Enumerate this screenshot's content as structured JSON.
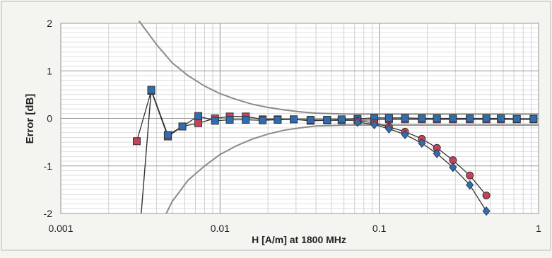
{
  "chart_data": {
    "type": "line",
    "x_scale": "log",
    "xlim": [
      0.001,
      1
    ],
    "ylim": [
      -2,
      2
    ],
    "xlabel": "H [A/m] at 1800 MHz",
    "ylabel": "Error [dB]",
    "x_ticks": [
      {
        "value": 0.001,
        "label": "0.001"
      },
      {
        "value": 0.01,
        "label": "0.01"
      },
      {
        "value": 0.1,
        "label": "0.1"
      },
      {
        "value": 1,
        "label": "1"
      }
    ],
    "y_ticks": [
      {
        "value": 2,
        "label": "2"
      },
      {
        "value": 1,
        "label": "1"
      },
      {
        "value": 0,
        "label": "0"
      },
      {
        "value": -1,
        "label": "-1"
      },
      {
        "value": -2,
        "label": "-2"
      }
    ],
    "grid": true,
    "series": [
      {
        "color": "#c8415a",
        "marker": "square",
        "points": [
          [
            0.003,
            -0.48
          ],
          [
            0.0037,
            0.58
          ],
          [
            0.0047,
            -0.38
          ],
          [
            0.0058,
            -0.17
          ],
          [
            0.0073,
            -0.1
          ],
          [
            0.0093,
            0.0
          ],
          [
            0.0115,
            0.04
          ],
          [
            0.0145,
            0.04
          ],
          [
            0.0185,
            -0.02
          ],
          [
            0.023,
            -0.02
          ],
          [
            0.029,
            -0.02
          ],
          [
            0.037,
            -0.05
          ],
          [
            0.047,
            -0.04
          ],
          [
            0.058,
            -0.04
          ],
          [
            0.073,
            -0.04
          ],
          [
            0.093,
            -0.03
          ],
          [
            0.115,
            -0.02
          ],
          [
            0.145,
            -0.02
          ],
          [
            0.185,
            -0.02
          ],
          [
            0.23,
            -0.02
          ],
          [
            0.29,
            -0.02
          ],
          [
            0.37,
            -0.02
          ],
          [
            0.47,
            -0.02
          ],
          [
            0.58,
            -0.02
          ],
          [
            0.73,
            -0.02
          ],
          [
            0.93,
            -0.02
          ]
        ]
      },
      {
        "color": "#2f6db1",
        "marker": "square",
        "points": [
          [
            0.0037,
            0.6
          ],
          [
            0.0047,
            -0.35
          ],
          [
            0.0058,
            -0.17
          ],
          [
            0.0073,
            0.05
          ],
          [
            0.0093,
            -0.05
          ],
          [
            0.0115,
            -0.03
          ],
          [
            0.0145,
            -0.03
          ],
          [
            0.0185,
            -0.04
          ],
          [
            0.023,
            -0.03
          ],
          [
            0.029,
            -0.02
          ],
          [
            0.037,
            -0.03
          ],
          [
            0.047,
            -0.03
          ],
          [
            0.058,
            -0.02
          ],
          [
            0.073,
            -0.01
          ],
          [
            0.093,
            0.01
          ],
          [
            0.115,
            0.01
          ],
          [
            0.145,
            0.01
          ],
          [
            0.185,
            0.0
          ],
          [
            0.23,
            0.0
          ],
          [
            0.29,
            0.0
          ],
          [
            0.37,
            0.0
          ],
          [
            0.47,
            0.0
          ],
          [
            0.58,
            0.0
          ],
          [
            0.73,
            -0.01
          ],
          [
            0.93,
            -0.01
          ]
        ]
      },
      {
        "color": "#c8415a",
        "marker": "circle",
        "points": [
          [
            0.073,
            -0.05
          ],
          [
            0.093,
            -0.09
          ],
          [
            0.115,
            -0.18
          ],
          [
            0.145,
            -0.28
          ],
          [
            0.185,
            -0.43
          ],
          [
            0.23,
            -0.62
          ],
          [
            0.29,
            -0.88
          ],
          [
            0.37,
            -1.2
          ],
          [
            0.47,
            -1.62
          ]
        ]
      },
      {
        "color": "#2f6db1",
        "marker": "diamond",
        "points": [
          [
            0.073,
            -0.08
          ],
          [
            0.093,
            -0.13
          ],
          [
            0.115,
            -0.22
          ],
          [
            0.145,
            -0.34
          ],
          [
            0.185,
            -0.52
          ],
          [
            0.23,
            -0.74
          ],
          [
            0.29,
            -1.03
          ],
          [
            0.37,
            -1.4
          ],
          [
            0.47,
            -1.95
          ]
        ]
      }
    ],
    "bounds": [
      {
        "color": "#8a8a8a",
        "points": [
          [
            0.0031,
            2.05
          ],
          [
            0.004,
            1.55
          ],
          [
            0.005,
            1.17
          ],
          [
            0.0063,
            0.9
          ],
          [
            0.008,
            0.68
          ],
          [
            0.01,
            0.52
          ],
          [
            0.0126,
            0.4
          ],
          [
            0.0158,
            0.3
          ],
          [
            0.02,
            0.23
          ],
          [
            0.0251,
            0.18
          ],
          [
            0.0316,
            0.14
          ],
          [
            0.04,
            0.11
          ],
          [
            0.05,
            0.1
          ],
          [
            0.063,
            0.09
          ],
          [
            0.079,
            0.09
          ],
          [
            0.1,
            0.09
          ],
          [
            0.2,
            0.09
          ],
          [
            0.5,
            0.09
          ],
          [
            1,
            0.09
          ]
        ]
      },
      {
        "color": "#8a8a8a",
        "points": [
          [
            0.0046,
            -2.0
          ],
          [
            0.005,
            -1.75
          ],
          [
            0.0063,
            -1.3
          ],
          [
            0.008,
            -1.0
          ],
          [
            0.01,
            -0.76
          ],
          [
            0.0126,
            -0.58
          ],
          [
            0.0158,
            -0.44
          ],
          [
            0.02,
            -0.33
          ],
          [
            0.0251,
            -0.25
          ],
          [
            0.0316,
            -0.2
          ],
          [
            0.04,
            -0.16
          ],
          [
            0.05,
            -0.15
          ],
          [
            0.063,
            -0.14
          ],
          [
            0.079,
            -0.14
          ],
          [
            0.1,
            -0.14
          ],
          [
            0.2,
            -0.14
          ],
          [
            0.5,
            -0.14
          ],
          [
            1,
            -0.14
          ]
        ]
      },
      {
        "color": "#333333",
        "points": [
          [
            0.0037,
            0.6
          ],
          [
            0.0032,
            -2.0
          ]
        ]
      }
    ]
  }
}
